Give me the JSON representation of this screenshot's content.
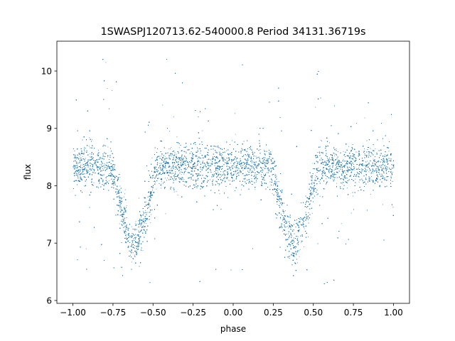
{
  "chart_data": {
    "type": "scatter",
    "title": "1SWASPJ120713.62-540000.8 Period 34131.36719s",
    "xlabel": "phase",
    "ylabel": "flux",
    "xlim": [
      -1.1,
      1.1
    ],
    "ylim": [
      5.95,
      10.52
    ],
    "xticks": [
      -1.0,
      -0.75,
      -0.5,
      -0.25,
      0.0,
      0.25,
      0.5,
      0.75,
      1.0
    ],
    "xtick_labels": [
      "−1.00",
      "−0.75",
      "−0.50",
      "−0.25",
      "0.00",
      "0.25",
      "0.50",
      "0.75",
      "1.00"
    ],
    "yticks": [
      6,
      7,
      8,
      9,
      10
    ],
    "ytick_labels": [
      "6",
      "7",
      "8",
      "9",
      "10"
    ],
    "grid": false,
    "marker_color": "#1f77b4",
    "x_range": [
      -1.0,
      1.0
    ],
    "baseline_flux": 8.33,
    "scatter_sigma": 0.19,
    "eclipses": [
      {
        "center_phase": -0.62,
        "min_flux": 6.95,
        "half_width": 0.14
      },
      {
        "center_phase": 0.38,
        "min_flux": 6.95,
        "half_width": 0.14
      }
    ],
    "n_points": 26000
  }
}
